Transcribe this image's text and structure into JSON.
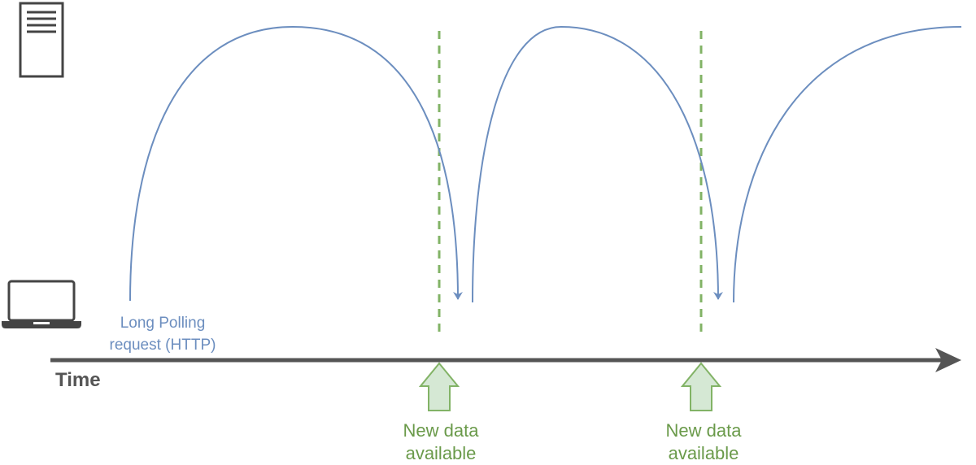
{
  "request_label": {
    "line1": "Long Polling",
    "line2": "request (HTTP)"
  },
  "timeline_label": "Time",
  "events": [
    {
      "line1": "New data",
      "line2": "available"
    },
    {
      "line1": "New data",
      "line2": "available"
    }
  ],
  "colors": {
    "request_arc": "#6c8ebf",
    "event_marker": "#82b366",
    "event_text": "#6a9a4a",
    "timeline": "#555555",
    "icon": "#444444"
  },
  "icons": {
    "server": "server-icon",
    "client": "laptop-icon"
  }
}
